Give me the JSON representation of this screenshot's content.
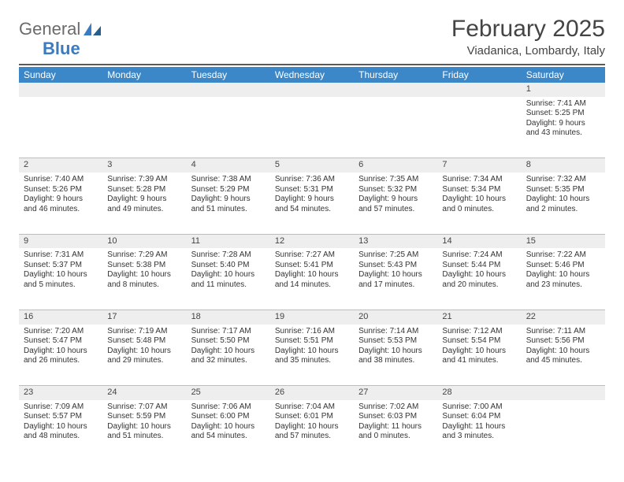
{
  "brand": {
    "general": "General",
    "blue": "Blue",
    "accent_color": "#3b7bbf",
    "gray": "#6b6b6b"
  },
  "title": "February 2025",
  "location": "Viadanica, Lombardy, Italy",
  "header_bg": "#3c87c7",
  "stripe_bg": "#eeeeee",
  "border_color": "#bdbdbd",
  "weekdays": [
    "Sunday",
    "Monday",
    "Tuesday",
    "Wednesday",
    "Thursday",
    "Friday",
    "Saturday"
  ],
  "weeks": [
    [
      null,
      null,
      null,
      null,
      null,
      null,
      {
        "n": "1",
        "sunrise": "Sunrise: 7:41 AM",
        "sunset": "Sunset: 5:25 PM",
        "daylight": "Daylight: 9 hours and 43 minutes."
      }
    ],
    [
      {
        "n": "2",
        "sunrise": "Sunrise: 7:40 AM",
        "sunset": "Sunset: 5:26 PM",
        "daylight": "Daylight: 9 hours and 46 minutes."
      },
      {
        "n": "3",
        "sunrise": "Sunrise: 7:39 AM",
        "sunset": "Sunset: 5:28 PM",
        "daylight": "Daylight: 9 hours and 49 minutes."
      },
      {
        "n": "4",
        "sunrise": "Sunrise: 7:38 AM",
        "sunset": "Sunset: 5:29 PM",
        "daylight": "Daylight: 9 hours and 51 minutes."
      },
      {
        "n": "5",
        "sunrise": "Sunrise: 7:36 AM",
        "sunset": "Sunset: 5:31 PM",
        "daylight": "Daylight: 9 hours and 54 minutes."
      },
      {
        "n": "6",
        "sunrise": "Sunrise: 7:35 AM",
        "sunset": "Sunset: 5:32 PM",
        "daylight": "Daylight: 9 hours and 57 minutes."
      },
      {
        "n": "7",
        "sunrise": "Sunrise: 7:34 AM",
        "sunset": "Sunset: 5:34 PM",
        "daylight": "Daylight: 10 hours and 0 minutes."
      },
      {
        "n": "8",
        "sunrise": "Sunrise: 7:32 AM",
        "sunset": "Sunset: 5:35 PM",
        "daylight": "Daylight: 10 hours and 2 minutes."
      }
    ],
    [
      {
        "n": "9",
        "sunrise": "Sunrise: 7:31 AM",
        "sunset": "Sunset: 5:37 PM",
        "daylight": "Daylight: 10 hours and 5 minutes."
      },
      {
        "n": "10",
        "sunrise": "Sunrise: 7:29 AM",
        "sunset": "Sunset: 5:38 PM",
        "daylight": "Daylight: 10 hours and 8 minutes."
      },
      {
        "n": "11",
        "sunrise": "Sunrise: 7:28 AM",
        "sunset": "Sunset: 5:40 PM",
        "daylight": "Daylight: 10 hours and 11 minutes."
      },
      {
        "n": "12",
        "sunrise": "Sunrise: 7:27 AM",
        "sunset": "Sunset: 5:41 PM",
        "daylight": "Daylight: 10 hours and 14 minutes."
      },
      {
        "n": "13",
        "sunrise": "Sunrise: 7:25 AM",
        "sunset": "Sunset: 5:43 PM",
        "daylight": "Daylight: 10 hours and 17 minutes."
      },
      {
        "n": "14",
        "sunrise": "Sunrise: 7:24 AM",
        "sunset": "Sunset: 5:44 PM",
        "daylight": "Daylight: 10 hours and 20 minutes."
      },
      {
        "n": "15",
        "sunrise": "Sunrise: 7:22 AM",
        "sunset": "Sunset: 5:46 PM",
        "daylight": "Daylight: 10 hours and 23 minutes."
      }
    ],
    [
      {
        "n": "16",
        "sunrise": "Sunrise: 7:20 AM",
        "sunset": "Sunset: 5:47 PM",
        "daylight": "Daylight: 10 hours and 26 minutes."
      },
      {
        "n": "17",
        "sunrise": "Sunrise: 7:19 AM",
        "sunset": "Sunset: 5:48 PM",
        "daylight": "Daylight: 10 hours and 29 minutes."
      },
      {
        "n": "18",
        "sunrise": "Sunrise: 7:17 AM",
        "sunset": "Sunset: 5:50 PM",
        "daylight": "Daylight: 10 hours and 32 minutes."
      },
      {
        "n": "19",
        "sunrise": "Sunrise: 7:16 AM",
        "sunset": "Sunset: 5:51 PM",
        "daylight": "Daylight: 10 hours and 35 minutes."
      },
      {
        "n": "20",
        "sunrise": "Sunrise: 7:14 AM",
        "sunset": "Sunset: 5:53 PM",
        "daylight": "Daylight: 10 hours and 38 minutes."
      },
      {
        "n": "21",
        "sunrise": "Sunrise: 7:12 AM",
        "sunset": "Sunset: 5:54 PM",
        "daylight": "Daylight: 10 hours and 41 minutes."
      },
      {
        "n": "22",
        "sunrise": "Sunrise: 7:11 AM",
        "sunset": "Sunset: 5:56 PM",
        "daylight": "Daylight: 10 hours and 45 minutes."
      }
    ],
    [
      {
        "n": "23",
        "sunrise": "Sunrise: 7:09 AM",
        "sunset": "Sunset: 5:57 PM",
        "daylight": "Daylight: 10 hours and 48 minutes."
      },
      {
        "n": "24",
        "sunrise": "Sunrise: 7:07 AM",
        "sunset": "Sunset: 5:59 PM",
        "daylight": "Daylight: 10 hours and 51 minutes."
      },
      {
        "n": "25",
        "sunrise": "Sunrise: 7:06 AM",
        "sunset": "Sunset: 6:00 PM",
        "daylight": "Daylight: 10 hours and 54 minutes."
      },
      {
        "n": "26",
        "sunrise": "Sunrise: 7:04 AM",
        "sunset": "Sunset: 6:01 PM",
        "daylight": "Daylight: 10 hours and 57 minutes."
      },
      {
        "n": "27",
        "sunrise": "Sunrise: 7:02 AM",
        "sunset": "Sunset: 6:03 PM",
        "daylight": "Daylight: 11 hours and 0 minutes."
      },
      {
        "n": "28",
        "sunrise": "Sunrise: 7:00 AM",
        "sunset": "Sunset: 6:04 PM",
        "daylight": "Daylight: 11 hours and 3 minutes."
      },
      null
    ]
  ]
}
